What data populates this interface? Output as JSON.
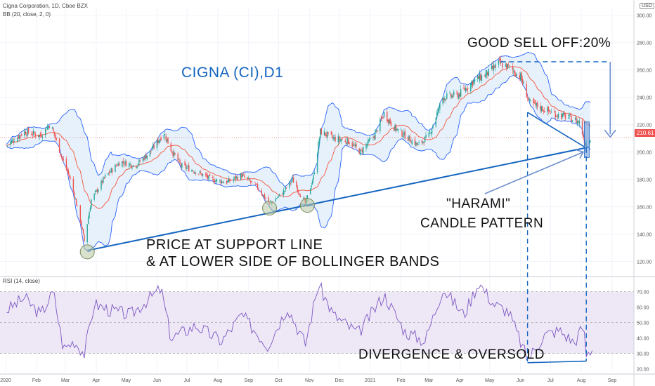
{
  "header": {
    "symbol_info": "Cigna Corporation, 1D, Cboe BZX",
    "indicator_bb": "BB (20, close, 2, 0)",
    "indicator_rsi": "RSI (14, close)",
    "currency": "USD",
    "price_tag": "210.61"
  },
  "annotations": {
    "title": "CIGNA (CI),D1",
    "sell_off": "GOOD SELL OFF:20%",
    "harami_line1": "\"HARAMI\"",
    "harami_line2": "CANDLE PATTERN",
    "support_line1": "PRICE AT SUPPORT LINE",
    "support_line2": "& AT LOWER SIDE OF BOLLINGER BANDS",
    "divergence": "DIVERGENCE & OVERSOLD"
  },
  "colors": {
    "candle_up": "#26a69a",
    "candle_down": "#ef5350",
    "bb_basis": "#f4553a",
    "bb_band": "#2962ff",
    "bb_fill": "#e3f0fb",
    "rsi_line": "#7e57c2",
    "rsi_band": "#ede7f6",
    "annotation_blue": "#1565c0"
  },
  "chart_data": [
    {
      "type": "candlestick",
      "price_axis": {
        "ticks": [
          "300.00",
          "280.00",
          "260.00",
          "240.00",
          "220.00",
          "200.00",
          "180.00",
          "160.00",
          "140.00",
          "120.00"
        ],
        "ylim": [
          110,
          305
        ]
      },
      "time_axis": {
        "ticks": [
          "2020",
          "Feb",
          "Mar",
          "Apr",
          "May",
          "Jun",
          "Jul",
          "Aug",
          "Sep",
          "Oct",
          "Nov",
          "Dec",
          "2021",
          "Feb",
          "Mar",
          "Apr",
          "May",
          "Jun",
          "Jul",
          "Aug",
          "Sep"
        ]
      },
      "close_series": [
        {
          "date": "2020-01-02",
          "close": 205
        },
        {
          "date": "2020-01-20",
          "close": 215
        },
        {
          "date": "2020-02-05",
          "close": 212
        },
        {
          "date": "2020-02-15",
          "close": 221
        },
        {
          "date": "2020-02-26",
          "close": 197
        },
        {
          "date": "2020-03-06",
          "close": 180
        },
        {
          "date": "2020-03-16",
          "close": 150
        },
        {
          "date": "2020-03-20",
          "close": 135
        },
        {
          "date": "2020-03-27",
          "close": 165
        },
        {
          "date": "2020-04-10",
          "close": 182
        },
        {
          "date": "2020-04-25",
          "close": 193
        },
        {
          "date": "2020-05-10",
          "close": 190
        },
        {
          "date": "2020-05-25",
          "close": 200
        },
        {
          "date": "2020-06-08",
          "close": 214
        },
        {
          "date": "2020-06-15",
          "close": 202
        },
        {
          "date": "2020-06-25",
          "close": 190
        },
        {
          "date": "2020-07-10",
          "close": 186
        },
        {
          "date": "2020-07-25",
          "close": 180
        },
        {
          "date": "2020-08-10",
          "close": 178
        },
        {
          "date": "2020-08-25",
          "close": 183
        },
        {
          "date": "2020-09-10",
          "close": 174
        },
        {
          "date": "2020-09-22",
          "close": 162
        },
        {
          "date": "2020-10-05",
          "close": 170
        },
        {
          "date": "2020-10-15",
          "close": 180
        },
        {
          "date": "2020-10-28",
          "close": 162
        },
        {
          "date": "2020-11-05",
          "close": 182
        },
        {
          "date": "2020-11-12",
          "close": 215
        },
        {
          "date": "2020-11-25",
          "close": 210
        },
        {
          "date": "2020-12-10",
          "close": 208
        },
        {
          "date": "2020-12-22",
          "close": 200
        },
        {
          "date": "2021-01-05",
          "close": 212
        },
        {
          "date": "2021-01-15",
          "close": 228
        },
        {
          "date": "2021-01-25",
          "close": 218
        },
        {
          "date": "2021-02-05",
          "close": 212
        },
        {
          "date": "2021-02-18",
          "close": 205
        },
        {
          "date": "2021-03-01",
          "close": 212
        },
        {
          "date": "2021-03-15",
          "close": 240
        },
        {
          "date": "2021-03-31",
          "close": 242
        },
        {
          "date": "2021-04-15",
          "close": 252
        },
        {
          "date": "2021-04-30",
          "close": 258
        },
        {
          "date": "2021-05-10",
          "close": 265
        },
        {
          "date": "2021-05-20",
          "close": 262
        },
        {
          "date": "2021-06-01",
          "close": 255
        },
        {
          "date": "2021-06-10",
          "close": 236
        },
        {
          "date": "2021-06-22",
          "close": 232
        },
        {
          "date": "2021-07-05",
          "close": 228
        },
        {
          "date": "2021-07-20",
          "close": 225
        },
        {
          "date": "2021-07-30",
          "close": 222
        },
        {
          "date": "2021-08-05",
          "close": 206
        },
        {
          "date": "2021-08-10",
          "close": 210.61
        }
      ],
      "support_line": [
        {
          "date": "2020-03-23",
          "price": 128
        },
        {
          "date": "2021-08-06",
          "price": 203
        }
      ],
      "circled_lows": [
        {
          "date": "2020-03-23",
          "price": 127
        },
        {
          "date": "2020-09-22",
          "price": 159
        },
        {
          "date": "2020-10-30",
          "price": 161
        }
      ],
      "sell_off_target_arrow": {
        "from_price": 266,
        "to_price": 211,
        "date": "2021-08-30"
      }
    },
    {
      "type": "line",
      "name": "RSI (14, close)",
      "y_axis": {
        "ticks": [
          "70.00",
          "60.00",
          "50.00",
          "40.00",
          "30.00",
          "20.00"
        ],
        "ylim": [
          18,
          78
        ]
      },
      "bands": {
        "upper": 70,
        "middle": 50,
        "lower": 30
      },
      "values": [
        {
          "date": "2020-01-02",
          "rsi": 58
        },
        {
          "date": "2020-01-20",
          "rsi": 66
        },
        {
          "date": "2020-02-05",
          "rsi": 55
        },
        {
          "date": "2020-02-18",
          "rsi": 70
        },
        {
          "date": "2020-02-28",
          "rsi": 33
        },
        {
          "date": "2020-03-10",
          "rsi": 38
        },
        {
          "date": "2020-03-20",
          "rsi": 30
        },
        {
          "date": "2020-03-30",
          "rsi": 62
        },
        {
          "date": "2020-04-15",
          "rsi": 58
        },
        {
          "date": "2020-05-05",
          "rsi": 55
        },
        {
          "date": "2020-06-05",
          "rsi": 72
        },
        {
          "date": "2020-06-15",
          "rsi": 40
        },
        {
          "date": "2020-07-10",
          "rsi": 48
        },
        {
          "date": "2020-08-05",
          "rsi": 38
        },
        {
          "date": "2020-08-25",
          "rsi": 55
        },
        {
          "date": "2020-09-20",
          "rsi": 35
        },
        {
          "date": "2020-10-10",
          "rsi": 60
        },
        {
          "date": "2020-10-28",
          "rsi": 36
        },
        {
          "date": "2020-11-10",
          "rsi": 75
        },
        {
          "date": "2020-11-25",
          "rsi": 55
        },
        {
          "date": "2020-12-20",
          "rsi": 43
        },
        {
          "date": "2021-01-15",
          "rsi": 68
        },
        {
          "date": "2021-02-05",
          "rsi": 44
        },
        {
          "date": "2021-02-25",
          "rsi": 38
        },
        {
          "date": "2021-03-15",
          "rsi": 72
        },
        {
          "date": "2021-04-05",
          "rsi": 55
        },
        {
          "date": "2021-04-20",
          "rsi": 76
        },
        {
          "date": "2021-05-05",
          "rsi": 62
        },
        {
          "date": "2021-05-20",
          "rsi": 57
        },
        {
          "date": "2021-06-08",
          "rsi": 26
        },
        {
          "date": "2021-06-25",
          "rsi": 42
        },
        {
          "date": "2021-07-10",
          "rsi": 45
        },
        {
          "date": "2021-07-25",
          "rsi": 37
        },
        {
          "date": "2021-08-03",
          "rsi": 48
        },
        {
          "date": "2021-08-06",
          "rsi": 29
        },
        {
          "date": "2021-08-12",
          "rsi": 33
        }
      ],
      "divergence_line": [
        {
          "date": "2021-06-08",
          "rsi": 24
        },
        {
          "date": "2021-08-06",
          "rsi": 25
        }
      ]
    }
  ]
}
